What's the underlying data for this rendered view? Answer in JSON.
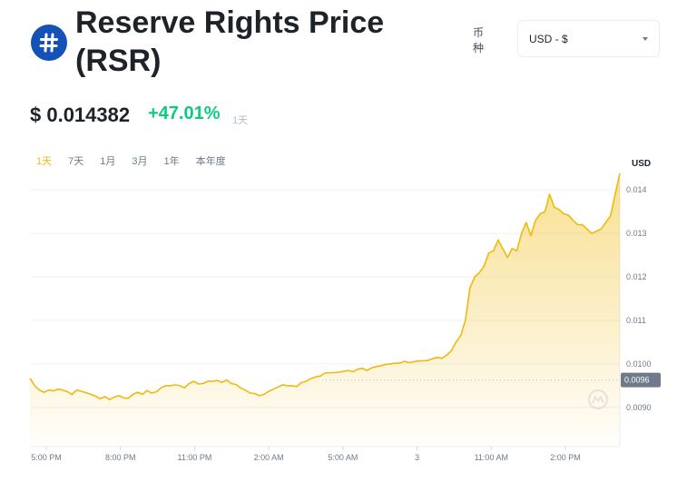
{
  "header": {
    "title": "Reserve Rights Price (RSR)",
    "currency_label": "币种",
    "currency_value": "USD - $"
  },
  "price": {
    "value": "$ 0.014382",
    "change": "+47.01%",
    "period": "1天"
  },
  "tabs": [
    {
      "label": "1天",
      "active": true
    },
    {
      "label": "7天",
      "active": false
    },
    {
      "label": "1月",
      "active": false
    },
    {
      "label": "3月",
      "active": false
    },
    {
      "label": "1年",
      "active": false
    },
    {
      "label": "本年度",
      "active": false
    }
  ],
  "colors": {
    "accent": "#f0b90b",
    "positive": "#0ecb81",
    "logo": "#1452b8",
    "tag": "#707a8a"
  },
  "chart_data": {
    "type": "area",
    "unit_label": "USD",
    "x_tick_labels": [
      "5:00 PM",
      "8:00 PM",
      "11:00 PM",
      "2:00 AM",
      "5:00 AM",
      "3",
      "11:00 AM",
      "2:00 PM"
    ],
    "y_ticks": [
      {
        "value": 0.009,
        "label": "0.0090"
      },
      {
        "value": 0.01,
        "label": "0.0100"
      },
      {
        "value": 0.011,
        "label": "0.011"
      },
      {
        "value": 0.012,
        "label": "0.012"
      },
      {
        "value": 0.013,
        "label": "0.013"
      },
      {
        "value": 0.014,
        "label": "0.014"
      }
    ],
    "ylim": [
      0.0081,
      0.0144
    ],
    "reference_value": 0.00963,
    "reference_label": "0.0096",
    "values": [
      0.00967,
      0.0095,
      0.0094,
      0.00935,
      0.0094,
      0.00938,
      0.00942,
      0.0094,
      0.00936,
      0.0093,
      0.0094,
      0.00937,
      0.00934,
      0.0093,
      0.00926,
      0.0092,
      0.00925,
      0.00918,
      0.00924,
      0.00927,
      0.00922,
      0.00921,
      0.0093,
      0.00935,
      0.0093,
      0.00939,
      0.00933,
      0.00936,
      0.00945,
      0.0095,
      0.0095,
      0.00952,
      0.0095,
      0.00945,
      0.00955,
      0.0096,
      0.00954,
      0.00955,
      0.0096,
      0.0096,
      0.00962,
      0.00958,
      0.00963,
      0.00955,
      0.00953,
      0.00945,
      0.0094,
      0.00933,
      0.00932,
      0.00927,
      0.0093,
      0.00937,
      0.00942,
      0.00947,
      0.00952,
      0.0095,
      0.0095,
      0.00948,
      0.00957,
      0.0096,
      0.00966,
      0.0097,
      0.00972,
      0.00979,
      0.0098,
      0.0098,
      0.00981,
      0.00983,
      0.00985,
      0.00982,
      0.00988,
      0.0099,
      0.00985,
      0.00991,
      0.00994,
      0.00996,
      0.00999,
      0.01,
      0.01002,
      0.01002,
      0.01006,
      0.01003,
      0.01005,
      0.01007,
      0.01007,
      0.01008,
      0.01012,
      0.01015,
      0.01013,
      0.0102,
      0.0103,
      0.0105,
      0.01065,
      0.011,
      0.01175,
      0.012,
      0.0121,
      0.01225,
      0.01255,
      0.0126,
      0.01285,
      0.01265,
      0.01245,
      0.01265,
      0.0126,
      0.013,
      0.01325,
      0.01295,
      0.0133,
      0.01345,
      0.0135,
      0.0139,
      0.0136,
      0.01355,
      0.01345,
      0.01342,
      0.0133,
      0.0132,
      0.0132,
      0.0131,
      0.013,
      0.01305,
      0.0131,
      0.01325,
      0.0134,
      0.0139,
      0.01438
    ]
  }
}
